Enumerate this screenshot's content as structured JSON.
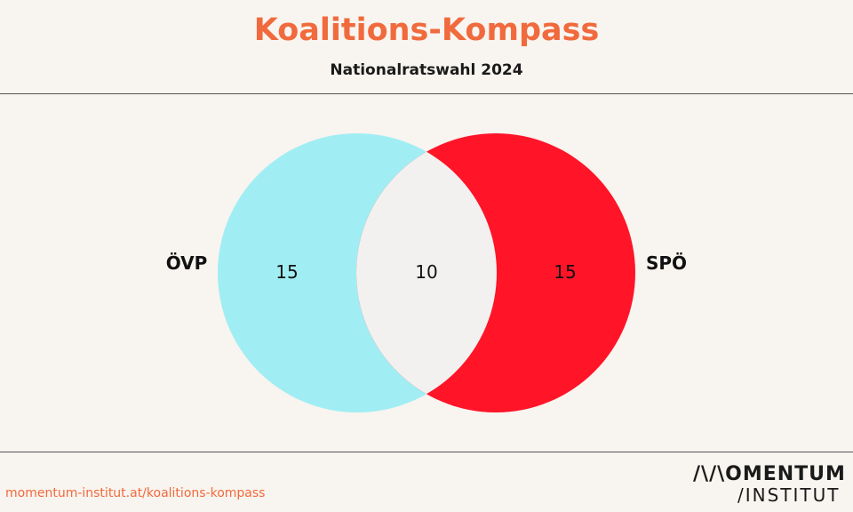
{
  "header": {
    "title": "Koalitions-Kompass",
    "subtitle": "Nationalratswahl 2024"
  },
  "chart_data": {
    "type": "venn",
    "sets": [
      {
        "name": "ÖVP",
        "only": 15,
        "color": "#a0eef4"
      },
      {
        "name": "SPÖ",
        "only": 15,
        "color": "#ff1428"
      }
    ],
    "intersection": 10,
    "intersection_color": "#f3f1ef"
  },
  "footer": {
    "url": "momentum-institut.at/koalitions-kompass",
    "logo_line1": "/\\/\\OMENTUM",
    "logo_line2": "/INSTITUT"
  },
  "colors": {
    "accent": "#f06a3d",
    "background": "#f8f4ef"
  }
}
